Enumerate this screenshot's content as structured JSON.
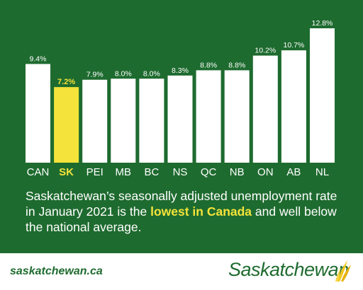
{
  "colors": {
    "background": "#1e6b2f",
    "bar": "#ffffff",
    "highlight": "#f4e33b",
    "text": "#ffffff"
  },
  "chart_data": {
    "type": "bar",
    "categories": [
      "CAN",
      "SK",
      "PEI",
      "MB",
      "BC",
      "NS",
      "QC",
      "NB",
      "ON",
      "AB",
      "NL"
    ],
    "values": [
      9.4,
      7.2,
      7.9,
      8.0,
      8.0,
      8.3,
      8.8,
      8.8,
      10.2,
      10.7,
      12.8
    ],
    "value_labels": [
      "9.4%",
      "7.2%",
      "7.9%",
      "8.0%",
      "8.0%",
      "8.3%",
      "8.8%",
      "8.8%",
      "10.2%",
      "10.7%",
      "12.8%"
    ],
    "highlight": "SK",
    "unit": "%",
    "title": "",
    "xlabel": "",
    "ylabel": "",
    "ylim": [
      0,
      12.8
    ],
    "grid": false,
    "legend": "none"
  },
  "caption": {
    "before": "Saskatchewan’s seasonally adjusted unemployment rate in January 2021 is the ",
    "highlight": "lowest in Canada",
    "after": " and well below the national average."
  },
  "footer": {
    "website": "saskatchewan.ca",
    "brand": "Saskatchewan",
    "brand_icon": "wheat-icon"
  }
}
